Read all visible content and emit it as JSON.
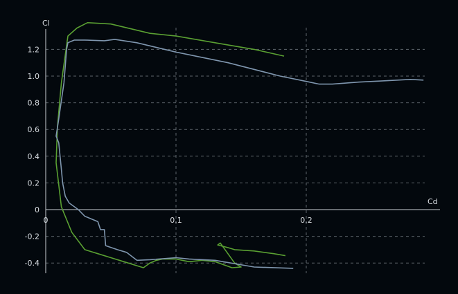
{
  "chart_data": {
    "type": "line",
    "xlabel": "Cd",
    "ylabel": "Cl",
    "xlim": [
      -0.001,
      0.294
    ],
    "ylim": [
      -0.48,
      1.42
    ],
    "xticks": [
      0,
      0.1,
      0.2
    ],
    "xtick_labels": [
      "0",
      "0.1",
      "0.2"
    ],
    "yticks": [
      -0.4,
      -0.2,
      0,
      0.2,
      0.4,
      0.6,
      0.8,
      1.0,
      1.2
    ],
    "ytick_labels": [
      "-0.4",
      "-0.2",
      "0",
      "0.2",
      "0.4",
      "0.6",
      "0.8",
      "1.0",
      "1.2"
    ],
    "grid": true,
    "grid_style": "dashed",
    "series": [
      {
        "color": "#5aa032",
        "x": [
          0.184,
          0.175,
          0.16,
          0.145,
          0.14,
          0.132,
          0.134,
          0.145,
          0.15,
          0.143,
          0.13,
          0.12,
          0.11,
          0.1,
          0.09,
          0.085,
          0.08,
          0.075,
          0.07,
          0.06,
          0.05,
          0.04,
          0.03,
          0.02,
          0.012,
          0.008,
          0.009,
          0.012,
          0.017,
          0.024,
          0.032,
          0.05,
          0.08,
          0.1,
          0.13,
          0.16,
          0.183
        ],
        "y": [
          -0.345,
          -0.33,
          -0.31,
          -0.3,
          -0.285,
          -0.265,
          -0.25,
          -0.4,
          -0.43,
          -0.435,
          -0.39,
          -0.38,
          -0.39,
          -0.37,
          -0.37,
          -0.38,
          -0.4,
          -0.435,
          -0.42,
          -0.39,
          -0.36,
          -0.33,
          -0.3,
          -0.17,
          0.02,
          0.35,
          0.62,
          0.95,
          1.3,
          1.36,
          1.4,
          1.39,
          1.32,
          1.3,
          1.25,
          1.2,
          1.15
        ]
      },
      {
        "color": "#7f96ae",
        "x": [
          0.29,
          0.28,
          0.26,
          0.24,
          0.22,
          0.21,
          0.2,
          0.18,
          0.14,
          0.1,
          0.07,
          0.053,
          0.045,
          0.03,
          0.022,
          0.017,
          0.016,
          0.014,
          0.01,
          0.008,
          0.01,
          0.012,
          0.013,
          0.015,
          0.018,
          0.025,
          0.03,
          0.04,
          0.042,
          0.045,
          0.046,
          0.055,
          0.062,
          0.07,
          0.08,
          0.1,
          0.11,
          0.13,
          0.16,
          0.19
        ],
        "y": [
          0.97,
          0.975,
          0.965,
          0.955,
          0.94,
          0.94,
          0.96,
          1.0,
          1.1,
          1.18,
          1.25,
          1.275,
          1.265,
          1.27,
          1.27,
          1.25,
          1.2,
          0.95,
          0.68,
          0.55,
          0.5,
          0.3,
          0.2,
          0.1,
          0.05,
          0.0,
          -0.05,
          -0.09,
          -0.15,
          -0.15,
          -0.27,
          -0.3,
          -0.32,
          -0.38,
          -0.375,
          -0.36,
          -0.37,
          -0.38,
          -0.43,
          -0.44
        ]
      }
    ]
  }
}
